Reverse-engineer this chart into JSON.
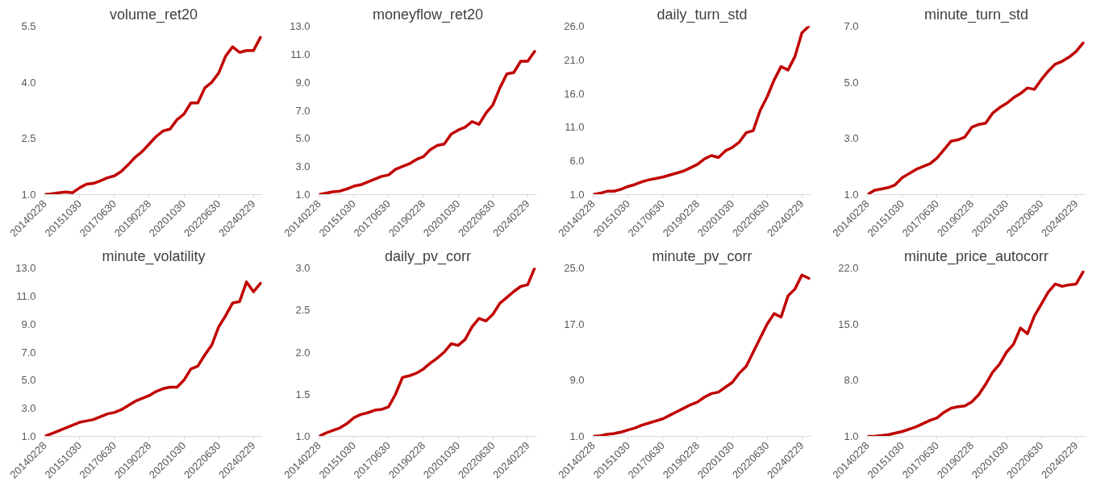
{
  "chart_data": [
    {
      "type": "line",
      "title": "volume_ret20",
      "categories": [
        "20140228",
        null,
        null,
        null,
        null,
        "20151030",
        null,
        null,
        null,
        null,
        "20170630",
        null,
        null,
        null,
        null,
        "20190228",
        null,
        null,
        null,
        null,
        "20201030",
        null,
        null,
        null,
        null,
        "20220630",
        null,
        null,
        null,
        null,
        "20240229",
        null
      ],
      "ylim": [
        1.0,
        5.5
      ],
      "yticks": [
        {
          "value": 1.0,
          "label": "1.0"
        },
        2.5,
        {
          "value": 4.0,
          "label": "4.0"
        },
        5.5
      ],
      "series": [
        {
          "color": "#c00000",
          "values": [
            1.0,
            1.02,
            1.05,
            1.07,
            1.05,
            1.18,
            1.28,
            1.3,
            1.37,
            1.45,
            1.5,
            1.62,
            1.8,
            2.0,
            2.15,
            2.35,
            2.55,
            2.7,
            2.75,
            3.0,
            3.15,
            3.45,
            3.45,
            3.85,
            4.0,
            4.25,
            4.7,
            4.95,
            4.8,
            4.85,
            4.85,
            5.2
          ]
        }
      ]
    },
    {
      "type": "line",
      "title": "moneyflow_ret20",
      "categories": [
        "20140228",
        null,
        null,
        null,
        null,
        "20151030",
        null,
        null,
        null,
        null,
        "20170630",
        null,
        null,
        null,
        null,
        "20190228",
        null,
        null,
        null,
        null,
        "20201030",
        null,
        null,
        null,
        null,
        "20220630",
        null,
        null,
        null,
        null,
        "20240229",
        null
      ],
      "ylim": [
        1.0,
        13.0
      ],
      "yticks": [
        {
          "value": 1.0,
          "label": "1.0"
        },
        {
          "value": 3.0,
          "label": "3.0"
        },
        {
          "value": 5.0,
          "label": "5.0"
        },
        {
          "value": 7.0,
          "label": "7.0"
        },
        {
          "value": 9.0,
          "label": "9.0"
        },
        {
          "value": 11.0,
          "label": "11.0"
        },
        {
          "value": 13.0,
          "label": "13.0"
        }
      ],
      "series": [
        {
          "color": "#c00000",
          "values": [
            1.0,
            1.1,
            1.2,
            1.25,
            1.4,
            1.6,
            1.7,
            1.9,
            2.1,
            2.3,
            2.4,
            2.8,
            3.0,
            3.2,
            3.5,
            3.7,
            4.2,
            4.5,
            4.6,
            5.3,
            5.6,
            5.8,
            6.2,
            6.0,
            6.8,
            7.4,
            8.6,
            9.6,
            9.7,
            10.5,
            10.5,
            11.2
          ]
        }
      ]
    },
    {
      "type": "line",
      "title": "daily_turn_std",
      "categories": [
        "20140228",
        null,
        null,
        null,
        null,
        "20151030",
        null,
        null,
        null,
        null,
        "20170630",
        null,
        null,
        null,
        null,
        "20190228",
        null,
        null,
        null,
        null,
        "20201030",
        null,
        null,
        null,
        null,
        "20220630",
        null,
        null,
        null,
        null,
        "20240229",
        null
      ],
      "ylim": [
        1.0,
        26.0
      ],
      "yticks": [
        {
          "value": 1.0,
          "label": "1.0"
        },
        {
          "value": 6.0,
          "label": "6.0"
        },
        {
          "value": 11.0,
          "label": "11.0"
        },
        {
          "value": 16.0,
          "label": "16.0"
        },
        {
          "value": 21.0,
          "label": "21.0"
        },
        {
          "value": 26.0,
          "label": "26.0"
        }
      ],
      "series": [
        {
          "color": "#c00000",
          "values": [
            1.0,
            1.2,
            1.5,
            1.5,
            1.8,
            2.2,
            2.5,
            2.9,
            3.2,
            3.4,
            3.6,
            3.9,
            4.2,
            4.5,
            5.0,
            5.5,
            6.3,
            6.8,
            6.5,
            7.5,
            8.0,
            8.8,
            10.2,
            10.5,
            13.5,
            15.5,
            18.0,
            20.0,
            19.5,
            21.5,
            25.0,
            26.0
          ]
        }
      ]
    },
    {
      "type": "line",
      "title": "minute_turn_std",
      "categories": [
        "20140228",
        null,
        null,
        null,
        null,
        "20151030",
        null,
        null,
        null,
        null,
        "20170630",
        null,
        null,
        null,
        null,
        "20190228",
        null,
        null,
        null,
        null,
        "20201030",
        null,
        null,
        null,
        null,
        "20220630",
        null,
        null,
        null,
        null,
        "20240229",
        null
      ],
      "ylim": [
        1.0,
        7.0
      ],
      "yticks": [
        {
          "value": 1.0,
          "label": "1.0"
        },
        {
          "value": 3.0,
          "label": "3.0"
        },
        {
          "value": 5.0,
          "label": "5.0"
        },
        {
          "value": 7.0,
          "label": "7.0"
        }
      ],
      "series": [
        {
          "color": "#c00000",
          "values": [
            1.0,
            1.15,
            1.2,
            1.25,
            1.35,
            1.6,
            1.75,
            1.9,
            2.0,
            2.1,
            2.3,
            2.6,
            2.9,
            2.95,
            3.05,
            3.4,
            3.5,
            3.55,
            3.9,
            4.1,
            4.25,
            4.45,
            4.6,
            4.8,
            4.75,
            5.1,
            5.4,
            5.65,
            5.75,
            5.9,
            6.1,
            6.4
          ]
        }
      ]
    },
    {
      "type": "line",
      "title": "minute_volatility",
      "categories": [
        "20140228",
        null,
        null,
        null,
        null,
        "20151030",
        null,
        null,
        null,
        null,
        "20170630",
        null,
        null,
        null,
        null,
        "20190228",
        null,
        null,
        null,
        null,
        "20201030",
        null,
        null,
        null,
        null,
        "20220630",
        null,
        null,
        null,
        null,
        "20240229",
        null
      ],
      "ylim": [
        1.0,
        13.0
      ],
      "yticks": [
        {
          "value": 1.0,
          "label": "1.0"
        },
        {
          "value": 3.0,
          "label": "3.0"
        },
        {
          "value": 5.0,
          "label": "5.0"
        },
        {
          "value": 7.0,
          "label": "7.0"
        },
        {
          "value": 9.0,
          "label": "9.0"
        },
        {
          "value": 11.0,
          "label": "11.0"
        },
        {
          "value": 13.0,
          "label": "13.0"
        }
      ],
      "series": [
        {
          "color": "#c00000",
          "values": [
            1.0,
            1.2,
            1.4,
            1.6,
            1.8,
            2.0,
            2.1,
            2.2,
            2.4,
            2.6,
            2.7,
            2.9,
            3.2,
            3.5,
            3.7,
            3.9,
            4.2,
            4.4,
            4.5,
            4.5,
            5.0,
            5.8,
            6.0,
            6.8,
            7.5,
            8.8,
            9.6,
            10.5,
            10.6,
            12.0,
            11.3,
            11.9
          ]
        }
      ]
    },
    {
      "type": "line",
      "title": "daily_pv_corr",
      "categories": [
        "20140228",
        null,
        null,
        null,
        null,
        "20151030",
        null,
        null,
        null,
        null,
        "20170630",
        null,
        null,
        null,
        null,
        "20190228",
        null,
        null,
        null,
        null,
        "20201030",
        null,
        null,
        null,
        null,
        "20220630",
        null,
        null,
        null,
        null,
        "20240229",
        null
      ],
      "ylim": [
        1.0,
        3.0
      ],
      "yticks": [
        {
          "value": 1.0,
          "label": "1.0"
        },
        1.5,
        {
          "value": 2.0,
          "label": "2.0"
        },
        2.5,
        {
          "value": 3.0,
          "label": "3.0"
        }
      ],
      "series": [
        {
          "color": "#c00000",
          "values": [
            1.0,
            1.04,
            1.07,
            1.1,
            1.15,
            1.22,
            1.26,
            1.28,
            1.31,
            1.32,
            1.35,
            1.5,
            1.7,
            1.72,
            1.75,
            1.8,
            1.87,
            1.93,
            2.0,
            2.1,
            2.08,
            2.15,
            2.3,
            2.4,
            2.37,
            2.45,
            2.58,
            2.65,
            2.72,
            2.78,
            2.8,
            3.0
          ]
        }
      ]
    },
    {
      "type": "line",
      "title": "minute_pv_corr",
      "categories": [
        "20140228",
        null,
        null,
        null,
        null,
        "20151030",
        null,
        null,
        null,
        null,
        "20170630",
        null,
        null,
        null,
        null,
        "20190228",
        null,
        null,
        null,
        null,
        "20201030",
        null,
        null,
        null,
        null,
        "20220630",
        null,
        null,
        null,
        null,
        "20240229",
        null
      ],
      "ylim": [
        1.0,
        25.0
      ],
      "yticks": [
        {
          "value": 1.0,
          "label": "1.0"
        },
        {
          "value": 9.0,
          "label": "9.0"
        },
        {
          "value": 17.0,
          "label": "17.0"
        },
        {
          "value": 25.0,
          "label": "25.0"
        }
      ],
      "series": [
        {
          "color": "#c00000",
          "values": [
            1.0,
            1.1,
            1.3,
            1.4,
            1.6,
            1.9,
            2.2,
            2.6,
            2.9,
            3.2,
            3.5,
            4.0,
            4.5,
            5.0,
            5.5,
            5.9,
            6.6,
            7.1,
            7.3,
            8.0,
            8.7,
            10.0,
            11.0,
            13.0,
            15.0,
            17.0,
            18.5,
            18.0,
            21.0,
            22.0,
            24.0,
            23.5
          ]
        }
      ]
    },
    {
      "type": "line",
      "title": "minute_price_autocorr",
      "categories": [
        "20140228",
        null,
        null,
        null,
        null,
        "20151030",
        null,
        null,
        null,
        null,
        "20170630",
        null,
        null,
        null,
        null,
        "20190228",
        null,
        null,
        null,
        null,
        "20201030",
        null,
        null,
        null,
        null,
        "20220630",
        null,
        null,
        null,
        null,
        "20240229",
        null
      ],
      "ylim": [
        1.0,
        22.0
      ],
      "yticks": [
        {
          "value": 1.0,
          "label": "1.0"
        },
        {
          "value": 8.0,
          "label": "8.0"
        },
        {
          "value": 15.0,
          "label": "15.0"
        },
        {
          "value": 22.0,
          "label": "22.0"
        }
      ],
      "series": [
        {
          "color": "#c00000",
          "values": [
            1.0,
            1.0,
            1.1,
            1.2,
            1.4,
            1.6,
            1.9,
            2.2,
            2.6,
            3.0,
            3.3,
            4.0,
            4.5,
            4.7,
            4.8,
            5.3,
            6.2,
            7.5,
            9.0,
            10.0,
            11.5,
            12.5,
            14.5,
            13.8,
            16.0,
            17.5,
            19.0,
            20.0,
            19.7,
            19.9,
            20.0,
            21.5
          ]
        }
      ]
    }
  ]
}
